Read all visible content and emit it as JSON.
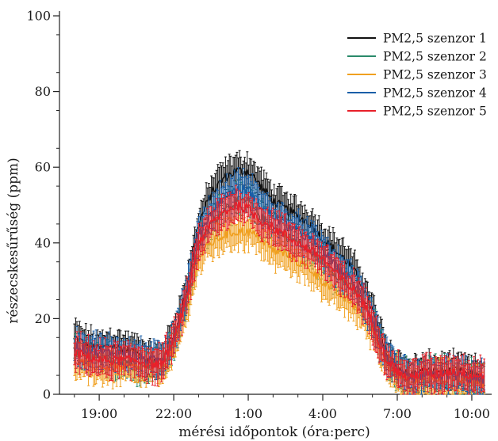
{
  "chart_data": {
    "type": "line",
    "title": "",
    "xlabel": "mérési időpontok (óra:perc)",
    "ylabel": "részecskesűrűség (ppm)",
    "ylim": [
      0,
      100
    ],
    "yticks": [
      "0",
      "20",
      "40",
      "60",
      "80",
      "100"
    ],
    "xlim": [
      17.4,
      34.8
    ],
    "xticks": [
      {
        "pos": 19,
        "label": "19:00"
      },
      {
        "pos": 22,
        "label": "22:00"
      },
      {
        "pos": 25,
        "label": "1:00"
      },
      {
        "pos": 28,
        "label": "4:00"
      },
      {
        "pos": 31,
        "label": "7:00"
      },
      {
        "pos": 34,
        "label": "10:00"
      }
    ],
    "x_unit": "hours (18 = 18:00, 25 = 1:00 next day)",
    "grid": false,
    "legend_position": "top-right",
    "error_bars": "vertical error bar on every sample",
    "series": [
      {
        "name": "PM2,5 szenzor 1",
        "color": "#111111",
        "x": [
          18.0,
          18.5,
          19.0,
          19.5,
          20.0,
          20.5,
          21.0,
          21.5,
          22.0,
          22.5,
          23.0,
          23.5,
          24.0,
          24.5,
          25.0,
          25.5,
          26.0,
          26.5,
          27.0,
          27.5,
          28.0,
          28.5,
          29.0,
          29.5,
          30.0,
          30.5,
          31.0,
          31.5,
          32.0,
          32.5,
          33.0,
          33.5,
          34.0,
          34.5
        ],
        "y": [
          15,
          13,
          12,
          13,
          12,
          11,
          9,
          9,
          16,
          27,
          45,
          53,
          57,
          59,
          59,
          55,
          51,
          49,
          47,
          45,
          41,
          38,
          35,
          30,
          22,
          12,
          7,
          5,
          6,
          6,
          6,
          6,
          5,
          5
        ]
      },
      {
        "name": "PM2,5 szenzor 2",
        "color": "#2a8a6a",
        "x": [
          18.0,
          18.5,
          19.0,
          19.5,
          20.0,
          20.5,
          21.0,
          21.5,
          22.0,
          22.5,
          23.0,
          23.5,
          24.0,
          24.5,
          25.0,
          25.5,
          26.0,
          26.5,
          27.0,
          27.5,
          28.0,
          28.5,
          29.0,
          29.5,
          30.0,
          30.5,
          31.0,
          31.5,
          32.0,
          32.5,
          33.0,
          33.5,
          34.0,
          34.5
        ],
        "y": [
          11,
          10,
          9,
          9,
          9,
          8,
          8,
          8,
          14,
          24,
          39,
          45,
          49,
          51,
          51,
          47,
          44,
          42,
          40,
          38,
          35,
          32,
          29,
          26,
          19,
          10,
          6,
          4,
          5,
          5,
          5,
          5,
          4,
          4
        ]
      },
      {
        "name": "PM2,5 szenzor 3",
        "color": "#f0a020",
        "x": [
          18.0,
          18.5,
          19.0,
          19.5,
          20.0,
          20.5,
          21.0,
          21.5,
          22.0,
          22.5,
          23.0,
          23.5,
          24.0,
          24.5,
          25.0,
          25.5,
          26.0,
          26.5,
          27.0,
          27.5,
          28.0,
          28.5,
          29.0,
          29.5,
          30.0,
          30.5,
          31.0,
          31.5,
          32.0,
          32.5,
          33.0,
          33.5,
          34.0,
          34.5
        ],
        "y": [
          9,
          8,
          7,
          7,
          7,
          7,
          7,
          7,
          12,
          22,
          36,
          40,
          42,
          43,
          43,
          41,
          38,
          37,
          35,
          33,
          30,
          27,
          25,
          22,
          17,
          9,
          5,
          3,
          4,
          4,
          4,
          4,
          3,
          3
        ]
      },
      {
        "name": "PM2,5 szenzor 4",
        "color": "#1a5fa8",
        "x": [
          18.0,
          18.5,
          19.0,
          19.5,
          20.0,
          20.5,
          21.0,
          21.5,
          22.0,
          22.5,
          23.0,
          23.5,
          24.0,
          24.5,
          25.0,
          25.5,
          26.0,
          26.5,
          27.0,
          27.5,
          28.0,
          28.5,
          29.0,
          29.5,
          30.0,
          30.5,
          31.0,
          31.5,
          32.0,
          32.5,
          33.0,
          33.5,
          34.0,
          34.5
        ],
        "y": [
          13,
          12,
          11,
          11,
          11,
          10,
          9,
          9,
          15,
          26,
          42,
          48,
          52,
          54,
          54,
          50,
          47,
          45,
          43,
          41,
          38,
          34,
          31,
          27,
          20,
          11,
          6,
          4,
          5,
          5,
          5,
          5,
          4,
          4
        ]
      },
      {
        "name": "PM2,5 szenzor 5",
        "color": "#e8202a",
        "x": [
          18.0,
          18.5,
          19.0,
          19.5,
          20.0,
          20.5,
          21.0,
          21.5,
          22.0,
          22.5,
          23.0,
          23.5,
          24.0,
          24.5,
          25.0,
          25.5,
          26.0,
          26.5,
          27.0,
          27.5,
          28.0,
          28.5,
          29.0,
          29.5,
          30.0,
          30.5,
          31.0,
          31.5,
          32.0,
          32.5,
          33.0,
          33.5,
          34.0,
          34.5
        ],
        "y": [
          11,
          10,
          9,
          9,
          9,
          9,
          8,
          8,
          14,
          25,
          40,
          45,
          48,
          50,
          49,
          46,
          44,
          42,
          40,
          38,
          36,
          32,
          29,
          26,
          19,
          10,
          6,
          4,
          6,
          5,
          6,
          6,
          5,
          5
        ]
      }
    ]
  }
}
